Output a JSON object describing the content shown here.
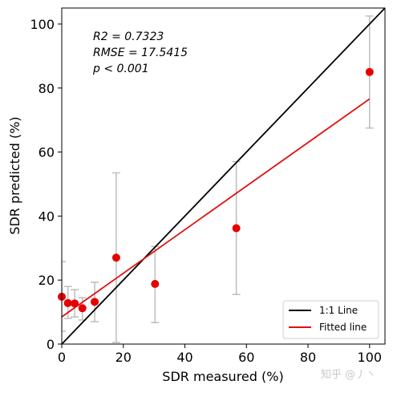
{
  "chart_data": {
    "type": "scatter",
    "title": "",
    "xlabel": "SDR measured (%)",
    "ylabel": "SDR predicted (%)",
    "xlim": [
      0,
      105
    ],
    "ylim": [
      0,
      105
    ],
    "xticks": [
      0,
      20,
      40,
      60,
      80,
      100
    ],
    "yticks": [
      0,
      20,
      40,
      60,
      80,
      100
    ],
    "grid": false,
    "legend_position": "bottom-right",
    "annotations": {
      "r2": "R2 = 0.7323",
      "rmse": "RMSE = 17.5415",
      "p": "p < 0.001"
    },
    "points": [
      {
        "x": 0.0,
        "y": 14.8,
        "err_low": 4.0,
        "err_high": 25.8
      },
      {
        "x": 2.0,
        "y": 12.8,
        "err_low": 8.0,
        "err_high": 18.0
      },
      {
        "x": 4.2,
        "y": 12.7,
        "err_low": 8.5,
        "err_high": 17.0
      },
      {
        "x": 6.7,
        "y": 11.2,
        "err_low": 7.5,
        "err_high": 14.5
      },
      {
        "x": 10.7,
        "y": 13.2,
        "err_low": 7.0,
        "err_high": 19.3
      },
      {
        "x": 17.7,
        "y": 27.0,
        "err_low": 0.5,
        "err_high": 53.5
      },
      {
        "x": 30.3,
        "y": 18.8,
        "err_low": 6.7,
        "err_high": 30.5
      },
      {
        "x": 56.7,
        "y": 36.2,
        "err_low": 15.5,
        "err_high": 57.0
      },
      {
        "x": 100.0,
        "y": 85.0,
        "err_low": 67.5,
        "err_high": 102.5
      }
    ],
    "series": [
      {
        "name": "1:1 Line",
        "x": [
          0,
          105
        ],
        "y": [
          0,
          105
        ],
        "color": "#000000"
      },
      {
        "name": "Fitted line",
        "x": [
          0,
          100
        ],
        "y": [
          8.5,
          76.6
        ],
        "color": "#e01010"
      }
    ],
    "point_color": "#e60000",
    "errorbar_color": "#bdbdbd"
  },
  "watermark": "知乎 @丿丶"
}
